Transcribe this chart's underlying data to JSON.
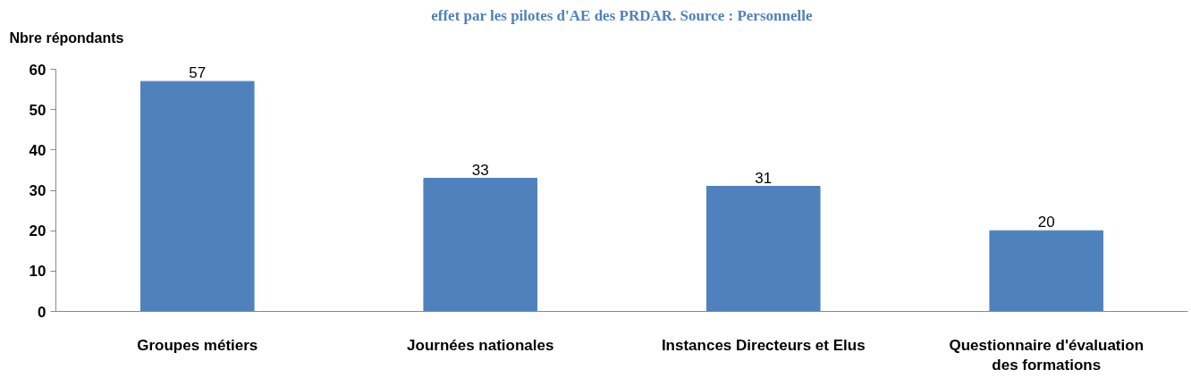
{
  "chart_data": {
    "type": "bar",
    "title": "effet par les pilotes d'AE des PRDAR. Source : Personnelle",
    "ylabel": "Nbre répondants",
    "categories": [
      "Groupes métiers",
      "Journées nationales",
      "Instances Directeurs et Elus",
      "Questionnaire d'évaluation des formations"
    ],
    "values": [
      57,
      33,
      31,
      20
    ],
    "color": "#4f81bd",
    "ylim": [
      0,
      60
    ],
    "yticks": [
      0,
      10,
      20,
      30,
      40,
      50,
      60
    ],
    "grid": false,
    "data_labels": true
  }
}
